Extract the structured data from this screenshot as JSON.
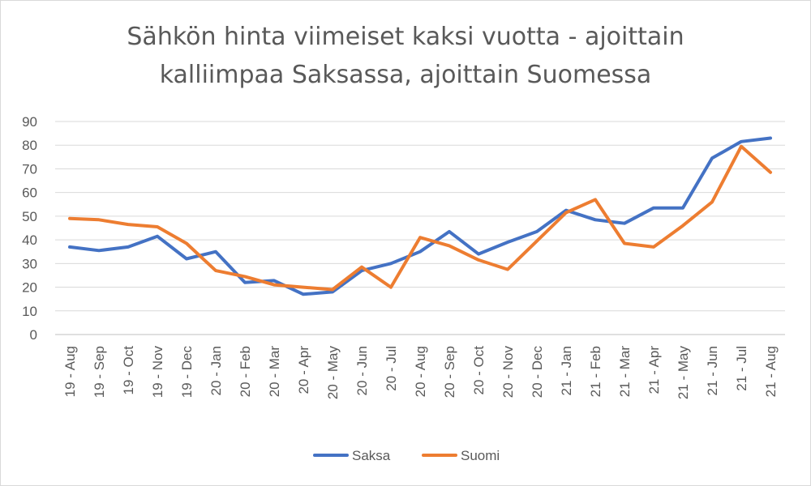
{
  "chart_data": {
    "type": "line",
    "title_lines": [
      "Sähkön hinta viimeiset kaksi vuotta - ajoittain",
      "kalliimpaa Saksassa, ajoittain Suomessa"
    ],
    "categories": [
      "19 - Aug",
      "19 - Sep",
      "19 - Oct",
      "19 - Nov",
      "19 - Dec",
      "20 - Jan",
      "20 - Feb",
      "20 - Mar",
      "20 - Apr",
      "20 - May",
      "20 - Jun",
      "20 - Jul",
      "20 - Aug",
      "20 - Sep",
      "20 - Oct",
      "20 - Nov",
      "20 - Dec",
      "21 - Jan",
      "21 - Feb",
      "21 - Mar",
      "21 - Apr",
      "21 - May",
      "21 - Jun",
      "21 - Jul",
      "21 - Aug"
    ],
    "series": [
      {
        "name": "Saksa",
        "color": "#4472c4",
        "values": [
          37,
          35.5,
          37,
          41.5,
          32,
          35,
          22,
          22.8,
          17,
          18,
          27,
          30,
          35,
          43.5,
          34,
          39,
          43.5,
          52.5,
          48.5,
          47,
          53.5,
          53.5,
          74.5,
          81.5,
          83
        ]
      },
      {
        "name": "Suomi",
        "color": "#ed7d31",
        "values": [
          49,
          48.5,
          46.5,
          45.5,
          38.5,
          27,
          24.5,
          21,
          20,
          19,
          28.5,
          20,
          41,
          37.5,
          31.5,
          27.5,
          39.5,
          51.5,
          57,
          38.5,
          37,
          46,
          56,
          79.5,
          68.5
        ]
      }
    ],
    "ylim": [
      0,
      90
    ],
    "yticks": [
      0,
      10,
      20,
      30,
      40,
      50,
      60,
      70,
      80,
      90
    ],
    "grid": true,
    "legend": "bottom-center"
  }
}
